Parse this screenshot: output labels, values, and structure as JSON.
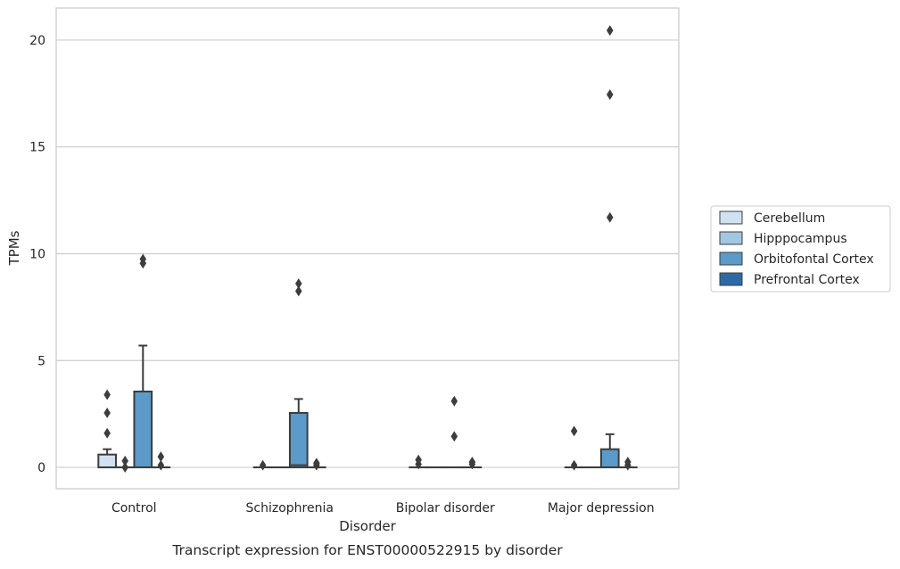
{
  "chart_data": {
    "type": "box",
    "title": "",
    "caption": "Transcript expression for ENST00000522915 by disorder",
    "xlabel": "Disorder",
    "ylabel": "TPMs",
    "ylim": [
      -1,
      21.5
    ],
    "yticks": [
      0,
      5,
      10,
      15,
      20
    ],
    "grid": "horizontal",
    "legend_position": "right",
    "categories": [
      "Control",
      "Schizophrenia",
      "Bipolar disorder",
      "Major depression"
    ],
    "series": [
      {
        "name": "Cerebellum",
        "color": "#d0e1f2",
        "boxes": [
          {
            "q1": 0,
            "median": 0,
            "q3": 0.6,
            "whisker_low": 0,
            "whisker_high": 0.85,
            "outliers": [
              1.6,
              2.55,
              3.4
            ]
          },
          {
            "q1": 0,
            "median": 0,
            "q3": 0,
            "whisker_low": 0,
            "whisker_high": 0,
            "outliers": [
              0.1
            ]
          },
          {
            "q1": 0,
            "median": 0,
            "q3": 0,
            "whisker_low": 0,
            "whisker_high": 0,
            "outliers": [
              0.15,
              0.35
            ]
          },
          {
            "q1": 0,
            "median": 0,
            "q3": 0,
            "whisker_low": 0,
            "whisker_high": 0,
            "outliers": [
              0.1,
              1.7
            ]
          }
        ]
      },
      {
        "name": "Hipppocampus",
        "color": "#a2c7e0",
        "boxes": [
          {
            "q1": 0,
            "median": 0,
            "q3": 0,
            "whisker_low": 0,
            "whisker_high": 0,
            "outliers": [
              0.0,
              0.3
            ]
          },
          {
            "q1": 0,
            "median": 0,
            "q3": 0,
            "whisker_low": 0,
            "whisker_high": 0,
            "outliers": []
          },
          {
            "q1": 0,
            "median": 0,
            "q3": 0,
            "whisker_low": 0,
            "whisker_high": 0,
            "outliers": []
          },
          {
            "q1": 0,
            "median": 0,
            "q3": 0,
            "whisker_low": 0,
            "whisker_high": 0,
            "outliers": []
          }
        ]
      },
      {
        "name": "Orbitofontal Cortex",
        "color": "#5b9ac9",
        "boxes": [
          {
            "q1": 0,
            "median": 0,
            "q3": 3.55,
            "whisker_low": 0,
            "whisker_high": 5.7,
            "outliers": [
              9.55,
              9.75
            ]
          },
          {
            "q1": 0,
            "median": 0.1,
            "q3": 2.55,
            "whisker_low": 0,
            "whisker_high": 3.2,
            "outliers": [
              8.25,
              8.6
            ]
          },
          {
            "q1": 0,
            "median": 0,
            "q3": 0,
            "whisker_low": 0,
            "whisker_high": 0,
            "outliers": [
              1.45,
              3.1
            ]
          },
          {
            "q1": 0,
            "median": 0,
            "q3": 0.85,
            "whisker_low": 0,
            "whisker_high": 1.55,
            "outliers": [
              11.7,
              17.45,
              20.45
            ]
          }
        ]
      },
      {
        "name": "Prefrontal Cortex",
        "color": "#2d6aa5",
        "boxes": [
          {
            "q1": 0,
            "median": 0,
            "q3": 0,
            "whisker_low": 0,
            "whisker_high": 0,
            "outliers": [
              0.1,
              0.5
            ]
          },
          {
            "q1": 0,
            "median": 0,
            "q3": 0,
            "whisker_low": 0,
            "whisker_high": 0,
            "outliers": [
              0.1,
              0.2
            ]
          },
          {
            "q1": 0,
            "median": 0,
            "q3": 0,
            "whisker_low": 0,
            "whisker_high": 0,
            "outliers": [
              0.15,
              0.25
            ]
          },
          {
            "q1": 0,
            "median": 0,
            "q3": 0,
            "whisker_low": 0,
            "whisker_high": 0,
            "outliers": [
              0.1,
              0.25
            ]
          }
        ]
      }
    ]
  }
}
